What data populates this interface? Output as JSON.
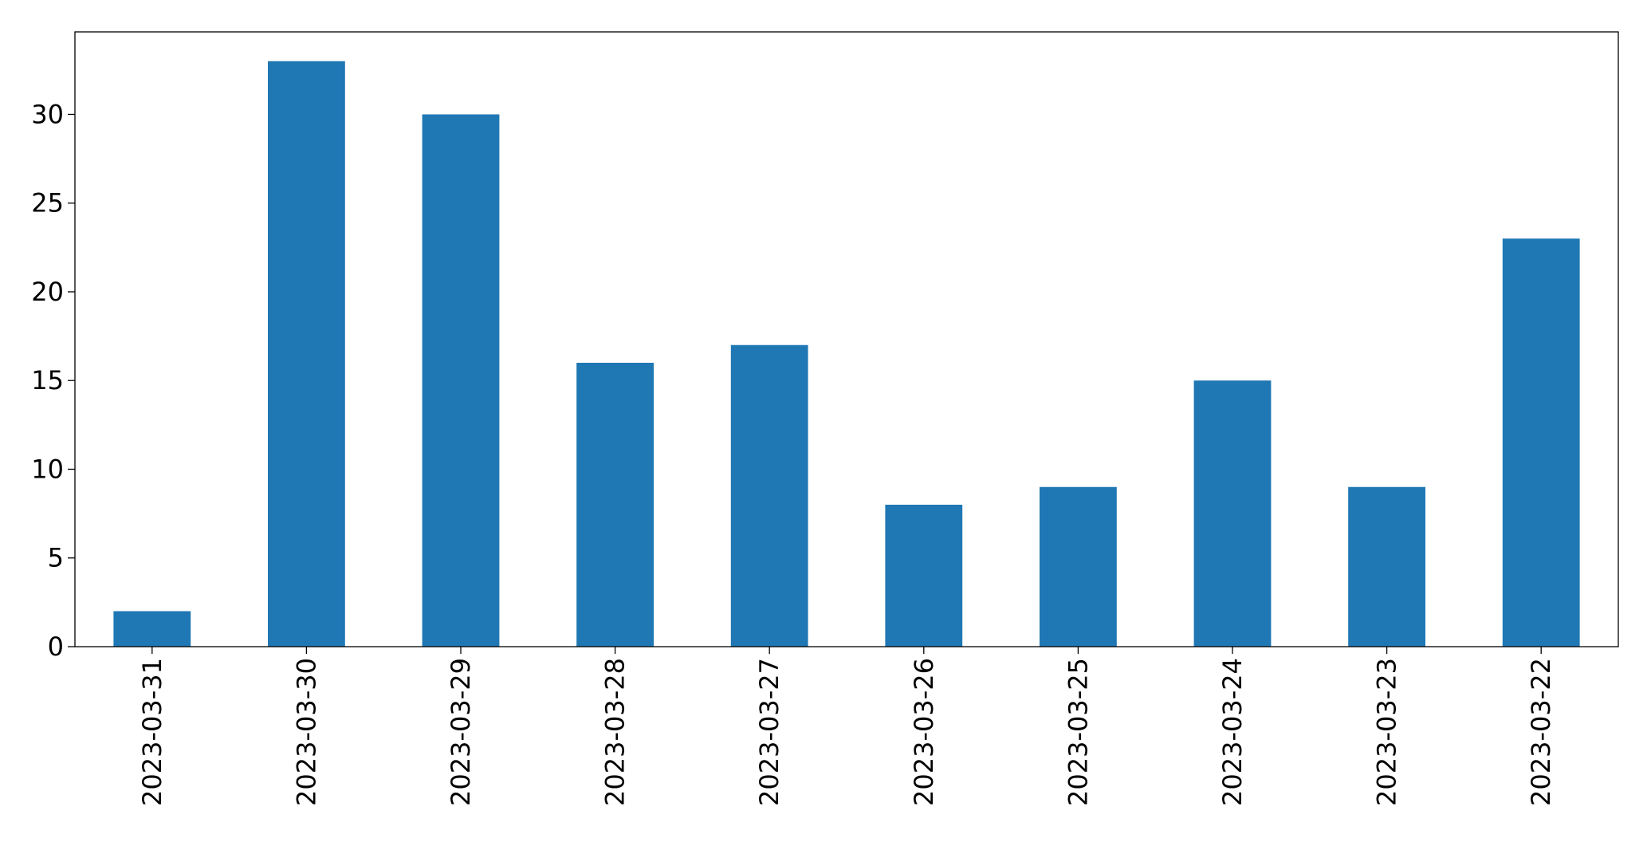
{
  "chart_data": {
    "type": "bar",
    "categories": [
      "2023-03-31",
      "2023-03-30",
      "2023-03-29",
      "2023-03-28",
      "2023-03-27",
      "2023-03-26",
      "2023-03-25",
      "2023-03-24",
      "2023-03-23",
      "2023-03-22"
    ],
    "values": [
      2,
      33,
      30,
      16,
      17,
      8,
      9,
      15,
      9,
      23
    ],
    "color": "#1f77b4",
    "ylim": [
      0,
      34.65
    ],
    "yticks": [
      0,
      5,
      10,
      15,
      20,
      25,
      30
    ],
    "grid": false
  }
}
